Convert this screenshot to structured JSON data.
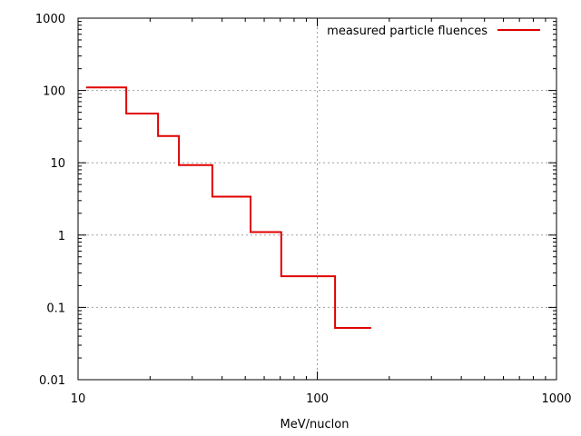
{
  "chart_data": {
    "type": "line",
    "style": "step",
    "title": "",
    "xlabel": "MeV/nuclon",
    "ylabel": "",
    "xscale": "log",
    "yscale": "log",
    "xlim": [
      10,
      1000
    ],
    "ylim": [
      0.01,
      1000
    ],
    "x_ticks": [
      "10",
      "100",
      "1000"
    ],
    "y_ticks": [
      "0.01",
      "0.1",
      "1",
      "10",
      "100",
      "1000"
    ],
    "grid": true,
    "legend_position": "top-right",
    "series": [
      {
        "name": "measured particle fluences",
        "color": "#e00000",
        "steps": [
          {
            "x_start": 10.8,
            "x_end": 15.9,
            "y": 110
          },
          {
            "x_start": 15.9,
            "x_end": 21.6,
            "y": 48
          },
          {
            "x_start": 21.6,
            "x_end": 26.4,
            "y": 23.5
          },
          {
            "x_start": 26.4,
            "x_end": 36.4,
            "y": 9.3
          },
          {
            "x_start": 36.4,
            "x_end": 52.6,
            "y": 3.4
          },
          {
            "x_start": 52.6,
            "x_end": 70.7,
            "y": 1.1
          },
          {
            "x_start": 70.7,
            "x_end": 118.7,
            "y": 0.27
          },
          {
            "x_start": 118.7,
            "x_end": 168,
            "y": 0.052
          }
        ]
      }
    ]
  }
}
